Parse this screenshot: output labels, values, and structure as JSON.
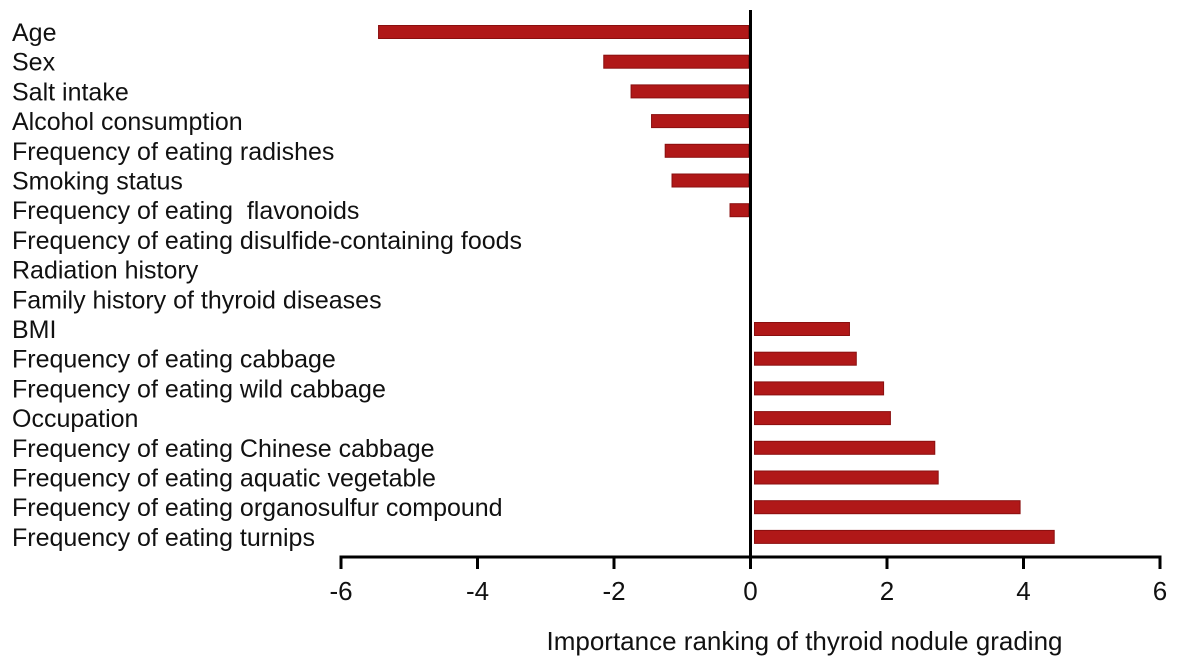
{
  "chart_data": {
    "type": "bar",
    "orientation": "horizontal",
    "categories": [
      "Age",
      "Sex",
      "Salt intake",
      "Alcohol consumption",
      "Frequency of eating radishes",
      "Smoking status",
      "Frequency of eating  flavonoids",
      "Frequency of eating disulfide-containing foods",
      "Radiation history",
      "Family history of thyroid diseases",
      "BMI",
      "Frequency of eating cabbage",
      "Frequency of eating wild cabbage",
      "Occupation",
      "Frequency of eating Chinese cabbage",
      "Frequency of eating aquatic vegetable",
      "Frequency of eating organosulfur compound",
      "Frequency of eating turnips"
    ],
    "values": [
      -5.45,
      -2.15,
      -1.75,
      -1.45,
      -1.25,
      -1.15,
      -0.3,
      -0.02,
      0,
      0,
      1.45,
      1.55,
      1.95,
      2.05,
      2.7,
      2.75,
      3.95,
      4.45
    ],
    "xlim": [
      -6,
      6
    ],
    "xticks": [
      -6,
      -4,
      -2,
      0,
      2,
      4,
      6
    ],
    "xtick_labels": [
      "-6",
      "-4",
      "-2",
      "0",
      "2",
      "4",
      "6"
    ],
    "xlabel": "Importance ranking of thyroid nodule grading",
    "ylabel": "",
    "title": "",
    "grid": false,
    "bar_color": "#b01818",
    "bar_edge_color": "#8a0f0f"
  }
}
